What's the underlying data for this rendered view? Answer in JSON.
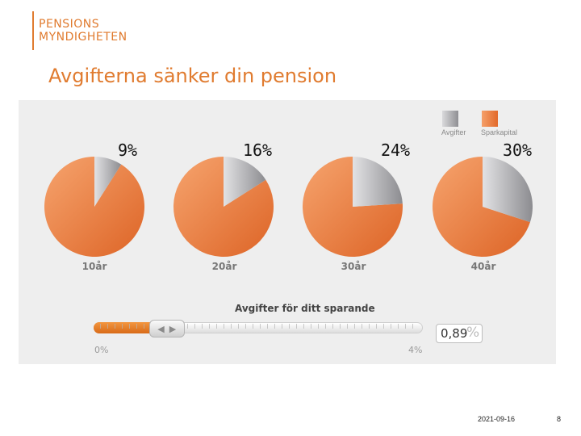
{
  "logo": {
    "line1": "PENSIONS",
    "line2": "MYNDIGHETEN"
  },
  "slide_title": "Avgifterna sänker din pension",
  "colors": {
    "brand": "#e07b2f",
    "fee": "#a9a9ad",
    "capital": "#eb7a3c"
  },
  "legend": [
    {
      "label": "Avgifter",
      "color": "#a9a9ad"
    },
    {
      "label": "Sparkapital",
      "color": "#eb7a3c"
    }
  ],
  "chart_data": {
    "type": "pie",
    "series": [
      "Avgifter",
      "Sparkapital"
    ],
    "pies": [
      {
        "label": "10år",
        "fee_percent": 9,
        "fee_label": "9%"
      },
      {
        "label": "20år",
        "fee_percent": 16,
        "fee_label": "16%"
      },
      {
        "label": "30år",
        "fee_percent": 24,
        "fee_label": "24%"
      },
      {
        "label": "40år",
        "fee_percent": 30,
        "fee_label": "30%"
      }
    ]
  },
  "slider": {
    "title": "Avgifter för ditt sparande",
    "min_label": "0%",
    "max_label": "4%",
    "min": 0,
    "max": 4,
    "value": 0.89,
    "value_text": "0,89",
    "unit": "%",
    "thumb_left_icon": "arrow-left-icon",
    "thumb_right_icon": "arrow-right-icon"
  },
  "footer": {
    "date": "2021-09-16",
    "page": "8"
  }
}
